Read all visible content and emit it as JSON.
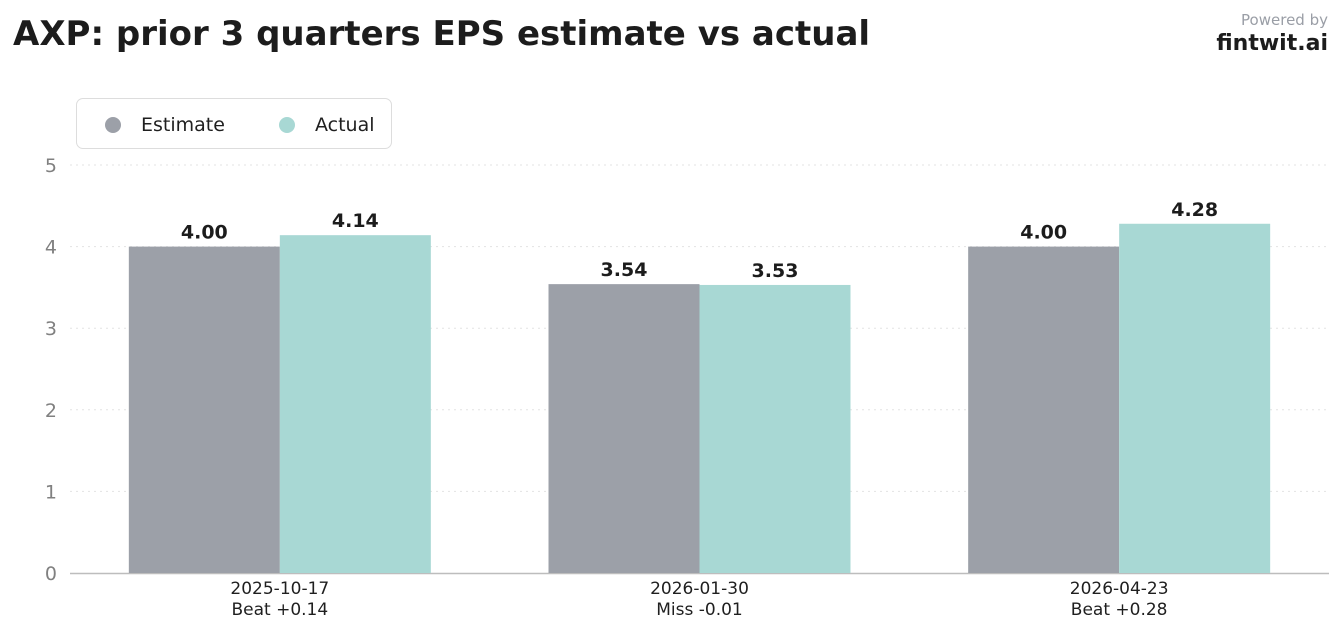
{
  "header": {
    "title": "AXP: prior 3 quarters EPS estimate vs actual",
    "powered_by": "Powered by",
    "brand": "fintwit.ai"
  },
  "colors": {
    "estimate": "#9ca0a8",
    "actual": "#a8d8d4",
    "grid": "#e3e3e3",
    "axis": "#bdbdbd",
    "tick_text": "#808080"
  },
  "chart_data": {
    "type": "bar",
    "title": "AXP: prior 3 quarters EPS estimate vs actual",
    "categories": [
      "2025-10-17",
      "2026-01-30",
      "2026-04-23"
    ],
    "category_sublabels": [
      "Beat +0.14",
      "Miss -0.01",
      "Beat +0.28"
    ],
    "series": [
      {
        "name": "Estimate",
        "values": [
          4.0,
          3.54,
          4.0
        ],
        "labels": [
          "4.00",
          "3.54",
          "4.00"
        ]
      },
      {
        "name": "Actual",
        "values": [
          4.14,
          3.53,
          4.28
        ],
        "labels": [
          "4.14",
          "3.53",
          "4.28"
        ]
      }
    ],
    "ylim": [
      0,
      5
    ],
    "yticks": [
      0,
      1,
      2,
      3,
      4,
      5
    ],
    "grid": true,
    "legend": "top-left"
  }
}
